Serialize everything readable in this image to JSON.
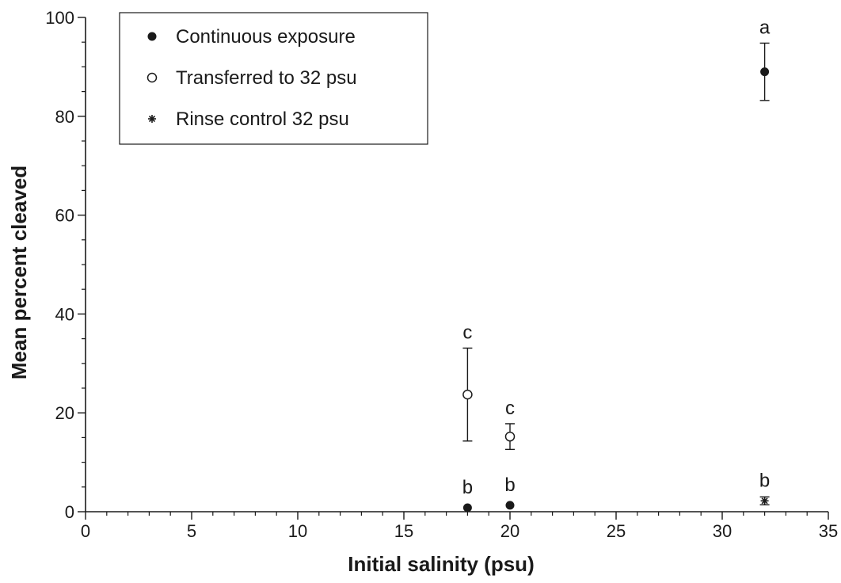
{
  "chart_data": {
    "type": "scatter",
    "xlabel": "Initial salinity (psu)",
    "ylabel": "Mean percent cleaved",
    "xlim": [
      0,
      35
    ],
    "ylim": [
      0,
      100
    ],
    "xticks": [
      0,
      5,
      10,
      15,
      20,
      25,
      30,
      35
    ],
    "yticks": [
      0,
      20,
      40,
      60,
      80,
      100
    ],
    "x_minor_step": 1,
    "y_minor_step": 5,
    "grid": false,
    "legend_position": "top-left",
    "series": [
      {
        "name": "Continuous exposure",
        "marker": "filled-circle",
        "points": [
          {
            "x": 18,
            "y": 0.8,
            "err": 0,
            "label": "b"
          },
          {
            "x": 20,
            "y": 1.3,
            "err": 0,
            "label": "b"
          },
          {
            "x": 32,
            "y": 89,
            "err": 5.8,
            "label": "a"
          }
        ]
      },
      {
        "name": "Transferred to 32 psu",
        "marker": "open-circle",
        "points": [
          {
            "x": 18,
            "y": 23.7,
            "err": 9.4,
            "label": "c"
          },
          {
            "x": 20,
            "y": 15.2,
            "err": 2.6,
            "label": "c"
          }
        ]
      },
      {
        "name": "Rinse control 32 psu",
        "marker": "asterisk",
        "points": [
          {
            "x": 32,
            "y": 2.2,
            "err": 0.8,
            "label": "b"
          }
        ]
      }
    ]
  }
}
